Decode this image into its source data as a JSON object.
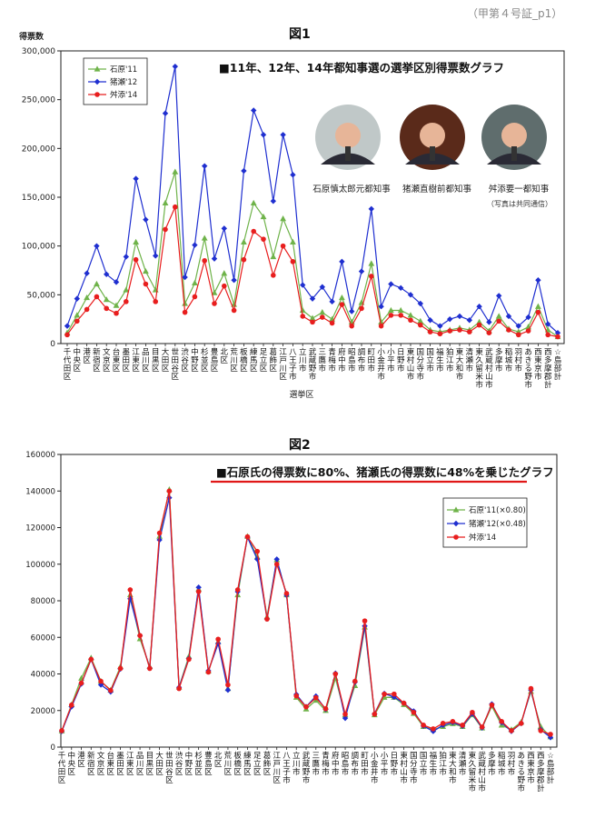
{
  "stamp": "（甲第４号証_p1）",
  "fig1": {
    "caption": "図1"
  },
  "fig2": {
    "caption": "図2"
  },
  "colors": {
    "ishihara": "#6fb34a",
    "inose": "#1f2fd0",
    "masuzoe": "#e81e1e",
    "highlight": "#e01818"
  },
  "people": {
    "names": [
      "石原慎太郎元都知事",
      "猪瀬直樹前都知事",
      "舛添要一都知事"
    ],
    "note": "（写真は共同通信）"
  },
  "chart_data": [
    {
      "type": "line",
      "title": "■11年、12年、14年都知事選の選挙区別得票数グラフ",
      "xlabel": "選挙区",
      "ylabel": "得票数",
      "ylim": [
        0,
        300000
      ],
      "yticks": [
        "0",
        "50,000",
        "100,000",
        "150,000",
        "200,000",
        "250,000",
        "300,000"
      ],
      "legend": "top-left",
      "grid": false,
      "categories": [
        "千代田区",
        "中央区",
        "港区",
        "新宿区",
        "文京区",
        "台東区",
        "墨田区",
        "江東区",
        "品川区",
        "目黒区",
        "大田区",
        "世田谷区",
        "渋谷区",
        "中野区",
        "杉並区",
        "豊島区",
        "北区",
        "荒川区",
        "板橋区",
        "練馬区",
        "足立区",
        "葛飾区",
        "江戸川区",
        "八王子市",
        "立川市",
        "武蔵野市",
        "三鷹市",
        "青梅市",
        "府中市",
        "昭島市",
        "調布市",
        "町田市",
        "小金井市",
        "小平市",
        "日野市",
        "東村山市",
        "国分寺市",
        "国立市",
        "福生市",
        "狛江市",
        "東大和市",
        "清瀬市",
        "東久留米市",
        "武蔵村山市",
        "多摩市",
        "稲城市",
        "羽村市",
        "あきる野市",
        "西東京市",
        "西多摩郡計",
        "☆島部計"
      ],
      "series": [
        {
          "name": "石原'11",
          "values": [
            11000,
            29000,
            47000,
            61000,
            45000,
            39000,
            55000,
            104000,
            74000,
            55000,
            144000,
            176000,
            41000,
            62000,
            108000,
            52000,
            72000,
            40000,
            104000,
            144000,
            130000,
            89000,
            128000,
            104000,
            34000,
            26000,
            32000,
            25000,
            47000,
            22000,
            42000,
            82000,
            22000,
            34000,
            34000,
            29000,
            23000,
            14000,
            12000,
            14000,
            16000,
            14000,
            22000,
            13000,
            28000,
            15000,
            12000,
            17000,
            38000,
            14000,
            7000
          ]
        },
        {
          "name": "猪瀬'12",
          "values": [
            18000,
            46000,
            72000,
            100000,
            71000,
            63000,
            89000,
            169000,
            127000,
            90000,
            236000,
            284000,
            68000,
            101000,
            182000,
            87000,
            118000,
            65000,
            177000,
            239000,
            214000,
            146000,
            214000,
            173000,
            60000,
            46000,
            58000,
            43000,
            84000,
            33000,
            74000,
            138000,
            38000,
            61000,
            57000,
            50000,
            41000,
            24000,
            18000,
            25000,
            28000,
            24000,
            38000,
            22000,
            49000,
            28000,
            18000,
            27000,
            65000,
            20000,
            11000
          ]
        },
        {
          "name": "舛添'14",
          "values": [
            9000,
            23000,
            35000,
            48000,
            36000,
            31000,
            43000,
            86000,
            61000,
            43000,
            117000,
            140000,
            32000,
            48000,
            85000,
            41000,
            59000,
            34000,
            86000,
            115000,
            107000,
            70000,
            100000,
            84000,
            28000,
            22000,
            27000,
            21000,
            40000,
            18000,
            36000,
            69000,
            18000,
            29000,
            29000,
            24000,
            19000,
            12000,
            10000,
            13000,
            14000,
            12000,
            19000,
            11000,
            23000,
            14000,
            9000,
            13000,
            32000,
            9000,
            7000
          ]
        }
      ]
    },
    {
      "type": "line",
      "title": "■石原氏の得票数に80%、猪瀬氏の得票数に48%を乗じたグラフ",
      "ylim": [
        0,
        160000
      ],
      "yticks": [
        "0",
        "20000",
        "40000",
        "60000",
        "80000",
        "100000",
        "120000",
        "140000",
        "160000"
      ],
      "legend": "right",
      "grid": false,
      "categories": [
        "千代田区",
        "中央区",
        "港区",
        "新宿区",
        "文京区",
        "台東区",
        "墨田区",
        "江東区",
        "品川区",
        "目黒区",
        "大田区",
        "世田谷区",
        "渋谷区",
        "中野区",
        "杉並区",
        "豊島区",
        "北区",
        "荒川区",
        "板橋区",
        "練馬区",
        "足立区",
        "葛飾区",
        "江戸川区",
        "八王子市",
        "立川市",
        "武蔵野市",
        "三鷹市",
        "青梅市",
        "府中市",
        "昭島市",
        "調布市",
        "町田市",
        "小金井市",
        "小平市",
        "日野市",
        "東村山市",
        "国分寺市",
        "国立市",
        "福生市",
        "狛江市",
        "東大和市",
        "清瀬市",
        "東久留米市",
        "武蔵村山市",
        "多摩市",
        "稲城市",
        "羽村市",
        "あきる野市",
        "西東京市",
        "西多摩郡計",
        "☆島部計"
      ],
      "series": [
        {
          "name": "石原'11(×0.80)",
          "values": [
            8800,
            23200,
            37600,
            48800,
            36000,
            31200,
            44000,
            83200,
            59200,
            44000,
            115200,
            140800,
            32800,
            49600,
            86400,
            41600,
            57600,
            32000,
            83200,
            115200,
            104000,
            71200,
            102400,
            83200,
            27200,
            20800,
            25600,
            20000,
            37600,
            17600,
            33600,
            65600,
            17600,
            27200,
            27200,
            23200,
            18400,
            11200,
            9600,
            11200,
            12800,
            11200,
            17600,
            10400,
            22400,
            12000,
            9600,
            13600,
            30400,
            11200,
            5600
          ]
        },
        {
          "name": "猪瀬'12(×0.48)",
          "values": [
            8640,
            22080,
            34560,
            48000,
            34080,
            30240,
            42720,
            81120,
            60960,
            43200,
            113280,
            136320,
            32640,
            48480,
            87360,
            41760,
            56640,
            31200,
            84960,
            114720,
            102720,
            70080,
            102720,
            83040,
            28800,
            22080,
            27840,
            20640,
            40320,
            15840,
            35520,
            66240,
            18240,
            29280,
            27360,
            24000,
            19680,
            11520,
            8640,
            12000,
            13440,
            11520,
            18240,
            10560,
            23520,
            13440,
            8640,
            12960,
            31200,
            9600,
            5280
          ]
        },
        {
          "name": "舛添'14",
          "values": [
            9000,
            23000,
            35000,
            48000,
            36000,
            31000,
            43000,
            86000,
            61000,
            43000,
            117000,
            140000,
            32000,
            48000,
            85000,
            41000,
            59000,
            34000,
            86000,
            115000,
            107000,
            70000,
            100000,
            84000,
            28000,
            22000,
            27000,
            21000,
            40000,
            18000,
            36000,
            69000,
            18000,
            29000,
            29000,
            24000,
            19000,
            12000,
            10000,
            13000,
            14000,
            12000,
            19000,
            11000,
            23000,
            14000,
            9000,
            13000,
            32000,
            9000,
            7000
          ]
        }
      ]
    }
  ]
}
